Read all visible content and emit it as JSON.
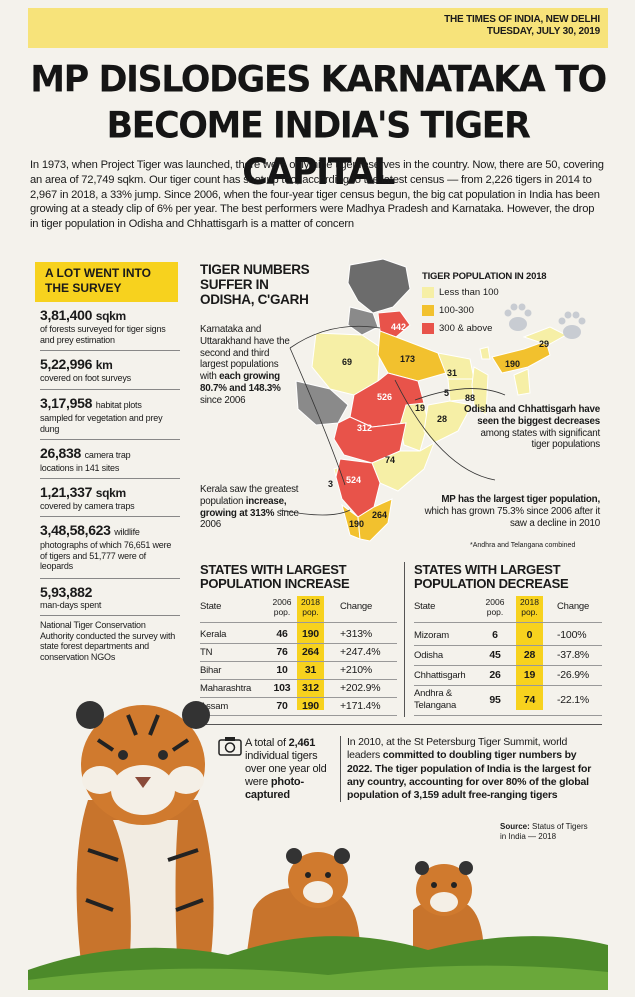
{
  "masthead": {
    "paper": "THE TIMES OF INDIA, NEW DELHI",
    "date": "TUESDAY, JULY 30, 2019"
  },
  "headline": {
    "line1": "MP DISLODGES KARNATAKA TO",
    "line2": "BECOME INDIA'S TIGER CAPITAL"
  },
  "intro": "In 1973, when Project Tiger was launched, there were only nine tiger reserves in the country. Now, there are 50, covering an area of 72,749 sqkm. Our tiger count has shot up too, according to the latest census — from 2,226 tigers in 2014 to 2,967 in 2018, a 33% jump. Since 2006, when the four-year tiger census begun, the big cat population in India has been growing at a steady clip of 6% per year. The best performers were Madhya Pradesh and Karnataka. However, the drop in tiger population in Odisha and Chhattisgarh is a matter of concern",
  "survey": {
    "title_line1": "A LOT WENT INTO",
    "title_line2": "THE SURVEY",
    "stats": [
      {
        "num": "3,81,400",
        "unit": "sqkm",
        "desc": "of forests surveyed for tiger signs and prey estimation"
      },
      {
        "num": "5,22,996",
        "unit": "km",
        "desc": "covered on foot surveys"
      },
      {
        "num": "3,17,958",
        "unit": "",
        "inline": "habitat plots",
        "desc": "sampled for vegetation and prey dung"
      },
      {
        "num": "26,838",
        "unit": "",
        "inline": "camera trap",
        "desc": "locations in 141 sites"
      },
      {
        "num": "1,21,337",
        "unit": "sqkm",
        "desc": "covered by camera traps"
      },
      {
        "num": "3,48,58,623",
        "unit": "",
        "inline": "wildlife",
        "desc": "photographs of which 76,651 were of tigers and 51,777 were of leopards"
      },
      {
        "num": "5,93,882",
        "unit": "",
        "desc": "man-days spent"
      }
    ],
    "ntca": "National Tiger Conservation Authority conducted the survey with state forest departments and conservation NGOs"
  },
  "map": {
    "title_line1": "TIGER NUMBERS",
    "title_line2": "SUFFER IN",
    "title_line3": "ODISHA, C'GARH",
    "legend_title": "TIGER POPULATION IN 2018",
    "legend": [
      {
        "label": "Less than 100",
        "color": "#f6efa6"
      },
      {
        "label": "100-300",
        "color": "#f2c12e"
      },
      {
        "label": "300 & above",
        "color": "#e8534a"
      }
    ],
    "labels": {
      "uttarakhand": "442",
      "up": "173",
      "rajasthan": "69",
      "mp": "526",
      "maharashtra": "312",
      "karnataka": "524",
      "kerala": "190",
      "tn": "264",
      "goa": "3",
      "andhra": "74",
      "chhattisgarh": "19",
      "odisha": "28",
      "jharkhand": "5",
      "bihar": "31",
      "wb": "88",
      "assam": "190",
      "arunachal": "29"
    },
    "ann_karnataka": {
      "p1": "Karnataka and Uttarakhand have the second and third largest populations with ",
      "bold": "each growing 80.7% and 148.3%",
      "p2": " since 2006"
    },
    "ann_kerala": {
      "p1": "Kerala saw the greatest population ",
      "bold": "increase, growing at 313%",
      "p2": " since 2006"
    },
    "ann_odisha": {
      "bold": "Odisha and Chhattisgarh have seen the biggest decreases",
      "p2": " among states with significant tiger populations"
    },
    "ann_mp": {
      "bold": "MP has the largest tiger population,",
      "p2": " which has grown 75.3% since 2006 after it saw a decline in 2010"
    },
    "footnote": "*Andhra and Telangana combined"
  },
  "increase": {
    "title_prefix": "STATES WITH ",
    "title_bold": "LARGEST",
    "title_line2": "POPULATION INCREASE",
    "headers": {
      "state": "State",
      "y2006": "2006",
      "y2018": "2018",
      "pop": "pop.",
      "change": "Change"
    },
    "rows": [
      {
        "state": "Kerala",
        "y2006": "46",
        "y2018": "190",
        "change": "+313%"
      },
      {
        "state": "TN",
        "y2006": "76",
        "y2018": "264",
        "change": "+247.4%"
      },
      {
        "state": "Bihar",
        "y2006": "10",
        "y2018": "31",
        "change": "+210%"
      },
      {
        "state": "Maharashtra",
        "y2006": "103",
        "y2018": "312",
        "change": "+202.9%"
      },
      {
        "state": "Assam",
        "y2006": "70",
        "y2018": "190",
        "change": "+171.4%"
      }
    ]
  },
  "decrease": {
    "title_prefix": "STATES WITH ",
    "title_bold": "LARGEST",
    "title_line2": "POPULATION DECREASE",
    "headers": {
      "state": "State",
      "y2006": "2006",
      "y2018": "2018",
      "pop": "pop.",
      "change": "Change"
    },
    "rows": [
      {
        "state": "Mizoram",
        "y2006": "6",
        "y2018": "0",
        "change": "-100%"
      },
      {
        "state": "Odisha",
        "y2006": "45",
        "y2018": "28",
        "change": "-37.8%"
      },
      {
        "state": "Chhattisgarh",
        "y2006": "26",
        "y2018": "19",
        "change": "-26.9%"
      },
      {
        "state": "Andhra &",
        "state2": "Telangana",
        "y2006": "95",
        "y2018": "74",
        "change": "-22.1%"
      }
    ]
  },
  "bottom": {
    "photo_p1": "A total of ",
    "photo_bold1": "2,461",
    "photo_p2": " individual tigers over one year old were ",
    "photo_bold2": "photo-captured",
    "summit_p1": "In 2010, at the St Petersburg Tiger Summit, world leaders ",
    "summit_b1": "committed to doubling tiger numbers by 2022. The tiger population of India is the largest for any country, accounting for over 80% of the global population of 3,159 adult free-ranging tigers",
    "source_label": "Source:",
    "source_text": " Status of Tigers in India — 2018"
  }
}
